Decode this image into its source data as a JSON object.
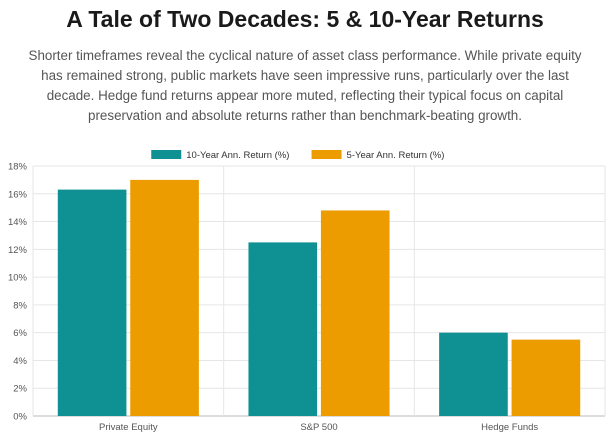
{
  "title": "A Tale of Two Decades: 5 & 10-Year Returns",
  "subtitle": "Shorter timeframes reveal the cyclical nature of asset class performance. While private equity has remained strong, public markets have seen impressive runs, particularly over the last decade. Hedge fund returns appear more muted, reflecting their typical focus on capital preservation and absolute returns rather than benchmark-beating growth.",
  "chart_data": {
    "type": "bar",
    "categories": [
      "Private Equity",
      "S&P 500",
      "Hedge Funds"
    ],
    "series": [
      {
        "name": "10-Year Ann. Return (%)",
        "values": [
          16.3,
          12.5,
          6.0
        ],
        "color": "#0f9193"
      },
      {
        "name": "5-Year Ann. Return (%)",
        "values": [
          17.0,
          14.8,
          5.5
        ],
        "color": "#ed9c00"
      }
    ],
    "ylim": [
      0,
      18
    ],
    "yticks": [
      "0%",
      "2%",
      "4%",
      "6%",
      "8%",
      "10%",
      "12%",
      "14%",
      "16%",
      "18%"
    ],
    "grid": true,
    "legend": "top-center"
  }
}
